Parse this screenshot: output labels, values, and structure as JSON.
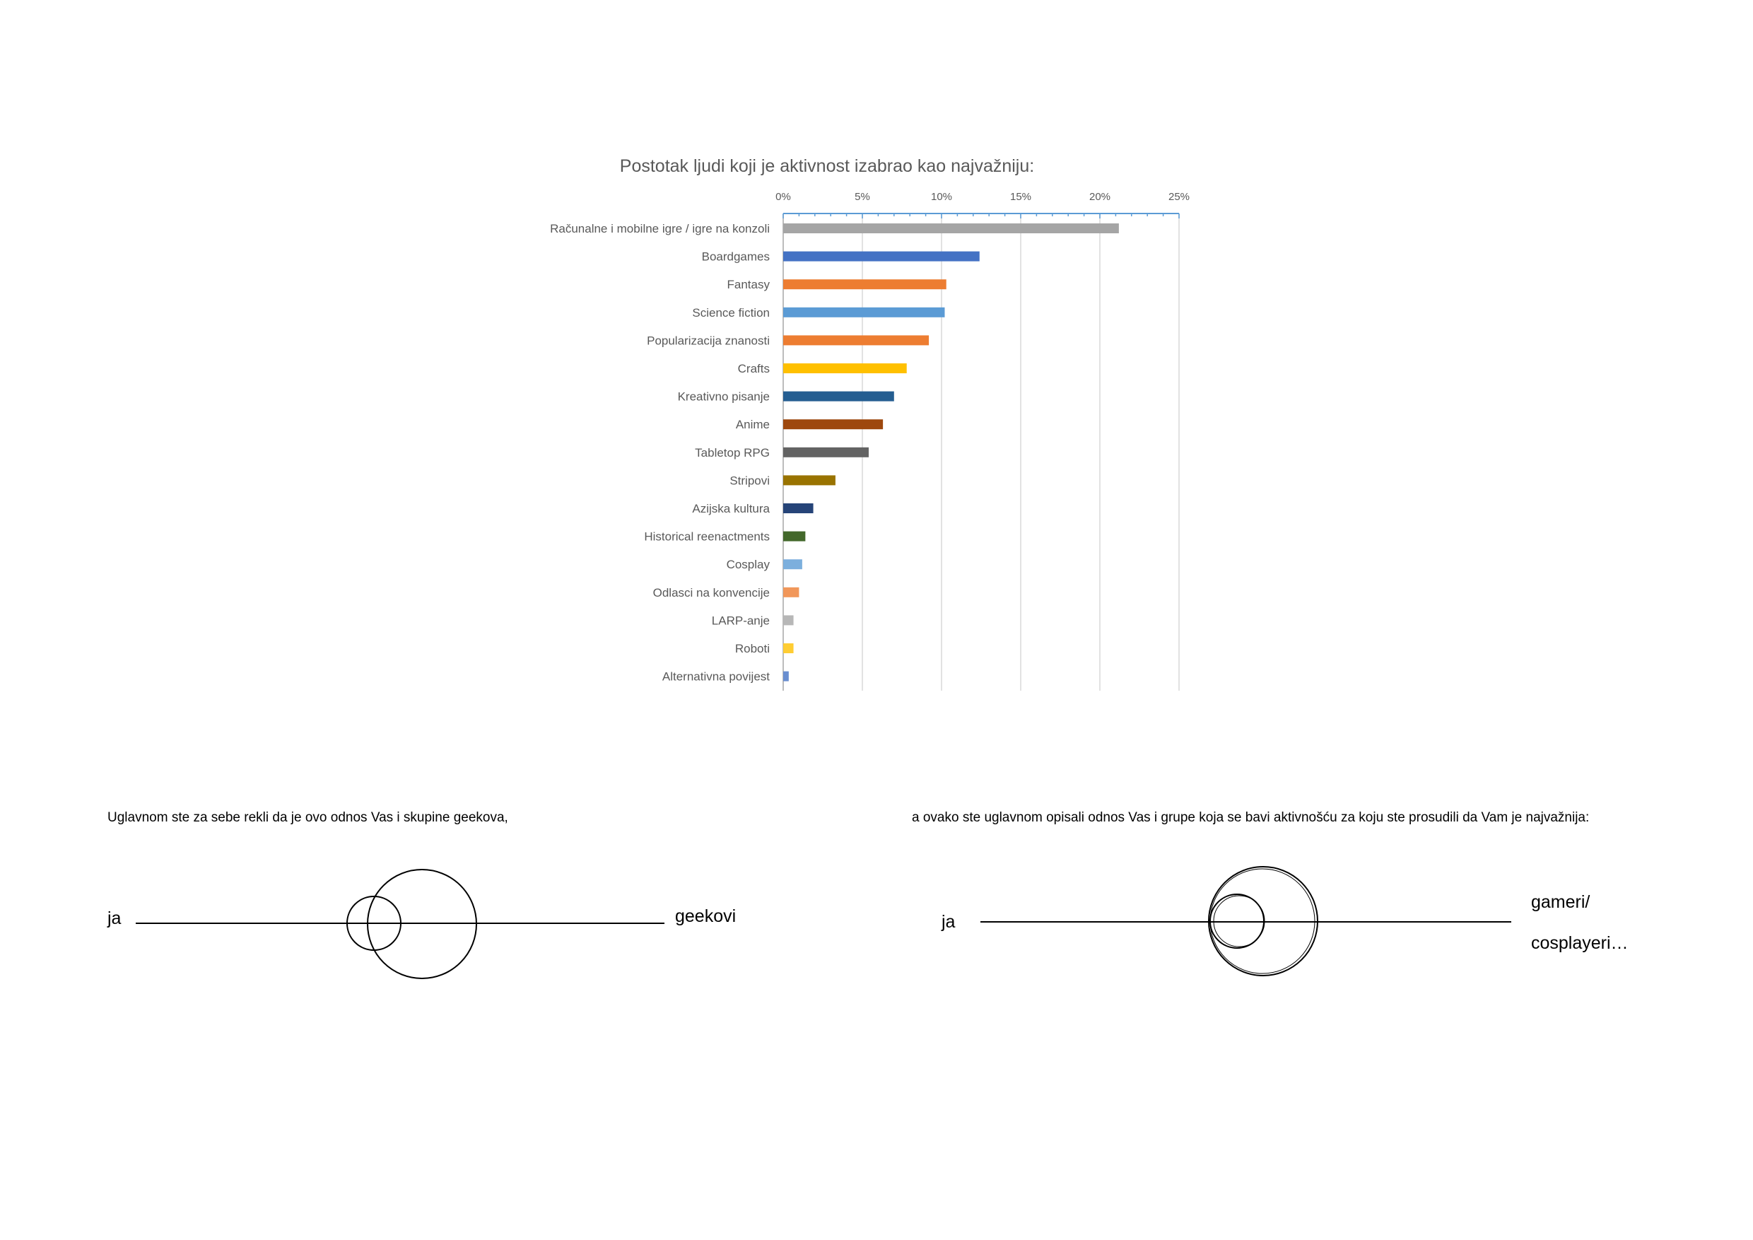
{
  "chart_data": {
    "type": "bar",
    "orientation": "horizontal",
    "title": "Postotak ljudi koji je aktivnost izabrao kao najvažniju:",
    "xlim": [
      0,
      25
    ],
    "x_ticks": [
      "0%",
      "5%",
      "10%",
      "15%",
      "20%",
      "25%"
    ],
    "x_tick_values": [
      0,
      5,
      10,
      15,
      20,
      25
    ],
    "grid": true,
    "x_axis_position": "top",
    "categories": [
      "Računalne i mobilne igre / igre na konzoli",
      "Boardgames",
      "Fantasy",
      "Science fiction",
      "Popularizacija znanosti",
      "Crafts",
      "Kreativno pisanje",
      "Anime",
      "Tabletop RPG",
      "Stripovi",
      "Azijska kultura",
      "Historical reenactments",
      "Cosplay",
      "Odlasci na konvencije",
      "LARP-anje",
      "Roboti",
      "Alternativna povijest"
    ],
    "values": [
      21.2,
      12.4,
      10.3,
      10.2,
      9.2,
      7.8,
      7.0,
      6.3,
      5.4,
      3.3,
      1.9,
      1.4,
      1.2,
      1.0,
      0.65,
      0.65,
      0.35
    ],
    "colors": [
      "#a5a5a5",
      "#4472c4",
      "#ed7d31",
      "#5b9bd5",
      "#ed7d31",
      "#ffc000",
      "#255e91",
      "#9e480e",
      "#636363",
      "#997300",
      "#264478",
      "#43682b",
      "#7cafdd",
      "#f1975a",
      "#b7b7b7",
      "#ffcd33",
      "#698ed0"
    ]
  },
  "captions": {
    "left": "Uglavnom ste za sebe rekli da je ovo odnos Vas i skupine geekova,",
    "right": "a ovako ste uglavnom opisali odnos Vas i grupe koja se bavi aktivnošću za koju ste prosudili da Vam je najvažnija:"
  },
  "diagram_left": {
    "self_label": "ja",
    "group_label": "geekovi"
  },
  "diagram_right": {
    "self_label": "ja",
    "group_label_line1": "gameri/",
    "group_label_line2": "cosplayeri…"
  }
}
